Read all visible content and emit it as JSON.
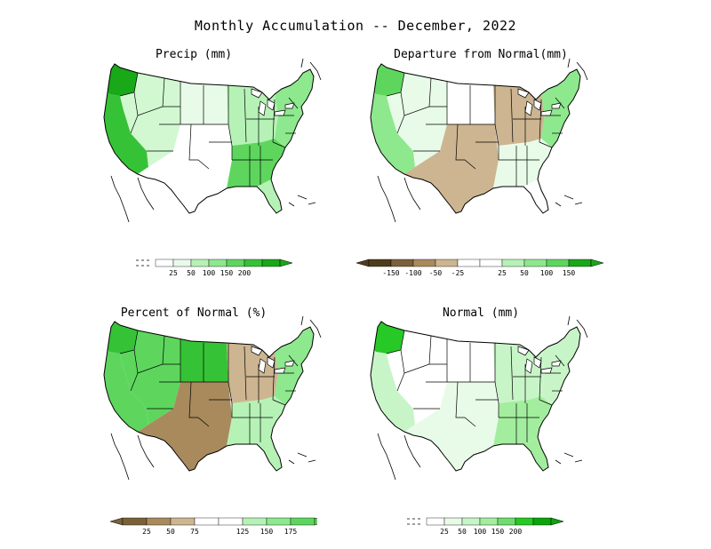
{
  "title": "Monthly Accumulation -- December, 2022",
  "panels": [
    {
      "id": "precip",
      "title": "Precip (mm)",
      "legend": {
        "type": "noaa-dry",
        "labels": [
          "25",
          "50",
          "100",
          "150",
          "200"
        ],
        "colors": [
          "#ffffff",
          "#e8fbe8",
          "#b6f2b6",
          "#8ee88e",
          "#5ed65e",
          "#36c236",
          "#18a818"
        ]
      },
      "color_by_region": {
        "pacific_nw": "#18a818",
        "california": "#36c236",
        "west_interior": "#d2f8d2",
        "north_plains": "#e8fbe8",
        "south_plains": "#ffffff",
        "midwest": "#b6f2b6",
        "southeast": "#5ed65e",
        "northeast": "#8ee88e",
        "florida": "#b6f2b6"
      }
    },
    {
      "id": "departure",
      "title": "Departure from Normal(mm)",
      "legend": {
        "type": "diverging",
        "labels": [
          "-150",
          "-100",
          "-50",
          "-25",
          "25",
          "50",
          "100",
          "150"
        ],
        "colors": [
          "#4f3c1e",
          "#7b613a",
          "#a88a5d",
          "#ccb590",
          "#e8d8bd",
          "#ffffff",
          "#d8f7d8",
          "#b6f2b6",
          "#8ee88e",
          "#5ed65e",
          "#18a818"
        ]
      },
      "color_by_region": {
        "pacific_nw": "#5ed65e",
        "california": "#8ee88e",
        "west_interior": "#e8fbe8",
        "north_plains": "#ffffff",
        "south_plains": "#ccb590",
        "midwest": "#ccb590",
        "southeast": "#e8fbe8",
        "northeast": "#8ee88e",
        "florida": "#ffffff"
      }
    },
    {
      "id": "percent",
      "title": "Percent of Normal (%)",
      "legend": {
        "type": "diverging-percent",
        "labels": [
          "25",
          "50",
          "75",
          "125",
          "150",
          "175"
        ],
        "colors": [
          "#7b613a",
          "#a88a5d",
          "#ccb590",
          "#ffffff",
          "#b6f2b6",
          "#8ee88e",
          "#5ed65e",
          "#36c236"
        ]
      },
      "color_by_region": {
        "pacific_nw": "#36c236",
        "california": "#5ed65e",
        "west_interior": "#5ed65e",
        "north_plains": "#36c236",
        "south_plains": "#a88a5d",
        "midwest": "#ccb590",
        "southeast": "#b6f2b6",
        "northeast": "#8ee88e",
        "florida": "#b6f2b6"
      }
    },
    {
      "id": "normal",
      "title": "Normal (mm)",
      "legend": {
        "type": "noaa-dry",
        "labels": [
          "25",
          "50",
          "100",
          "150",
          "200"
        ],
        "colors": [
          "#ffffff",
          "#e8fbe8",
          "#c8f5c8",
          "#a2ee9e",
          "#6fdc6f",
          "#26c926",
          "#0aa50a"
        ]
      },
      "color_by_region": {
        "pacific_nw": "#26c926",
        "california": "#c8f5c8",
        "west_interior": "#ffffff",
        "north_plains": "#ffffff",
        "south_plains": "#e8fbe8",
        "midwest": "#c8f5c8",
        "southeast": "#a2ee9e",
        "northeast": "#c8f5c8",
        "florida": "#a2ee9e"
      }
    }
  ]
}
